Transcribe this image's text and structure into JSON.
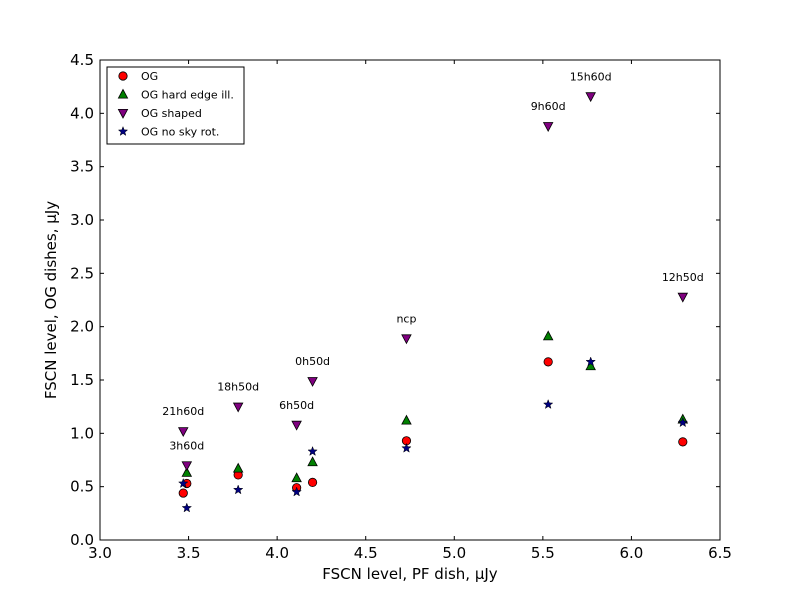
{
  "chart_data": {
    "type": "scatter",
    "xlabel": "FSCN level, PF dish, μJy",
    "ylabel": "FSCN level, OG dishes, μJy",
    "xlim": [
      3.0,
      6.5
    ],
    "ylim": [
      0.0,
      4.5
    ],
    "xticks": [
      "3.0",
      "3.5",
      "4.0",
      "4.5",
      "5.0",
      "5.5",
      "6.0",
      "6.5"
    ],
    "yticks": [
      "0.0",
      "0.5",
      "1.0",
      "1.5",
      "2.0",
      "2.5",
      "3.0",
      "3.5",
      "4.0",
      "4.5"
    ],
    "grid": false,
    "legend_position": "top-left",
    "series": [
      {
        "name": "OG",
        "marker": "circle",
        "color": "#ff0000",
        "x": [
          3.47,
          3.49,
          3.78,
          4.11,
          4.2,
          4.73,
          5.53,
          6.29
        ],
        "y": [
          0.44,
          0.53,
          0.61,
          0.49,
          0.54,
          0.93,
          1.67,
          0.92
        ]
      },
      {
        "name": "OG hard edge ill.",
        "marker": "triangle-up",
        "color": "#008000",
        "x": [
          3.49,
          3.78,
          4.11,
          4.2,
          4.73,
          5.53,
          5.77,
          6.29
        ],
        "y": [
          0.63,
          0.67,
          0.58,
          0.73,
          1.12,
          1.91,
          1.63,
          1.13
        ]
      },
      {
        "name": "OG shaped",
        "marker": "triangle-down",
        "color": "#800080",
        "x": [
          3.47,
          3.49,
          3.78,
          4.11,
          4.2,
          4.73,
          5.53,
          5.77,
          6.29
        ],
        "y": [
          1.02,
          0.7,
          1.25,
          1.08,
          1.49,
          1.89,
          3.88,
          4.16,
          2.28
        ]
      },
      {
        "name": "OG no sky rot.",
        "marker": "star",
        "color": "#000080",
        "x": [
          3.47,
          3.49,
          3.78,
          4.11,
          4.2,
          4.73,
          5.53,
          5.77,
          6.29
        ],
        "y": [
          0.53,
          0.3,
          0.47,
          0.45,
          0.83,
          0.86,
          1.27,
          1.67,
          1.1
        ]
      }
    ],
    "annotations": [
      {
        "text": "21h60d",
        "x": 3.47,
        "y": 1.02
      },
      {
        "text": "3h60d",
        "x": 3.49,
        "y": 0.7
      },
      {
        "text": "18h50d",
        "x": 3.78,
        "y": 1.25
      },
      {
        "text": "6h50d",
        "x": 4.11,
        "y": 1.08
      },
      {
        "text": "0h50d",
        "x": 4.2,
        "y": 1.49
      },
      {
        "text": "ncp",
        "x": 4.73,
        "y": 1.89
      },
      {
        "text": "9h60d",
        "x": 5.53,
        "y": 3.88
      },
      {
        "text": "15h60d",
        "x": 5.77,
        "y": 4.16
      },
      {
        "text": "12h50d",
        "x": 6.29,
        "y": 2.28
      }
    ]
  }
}
